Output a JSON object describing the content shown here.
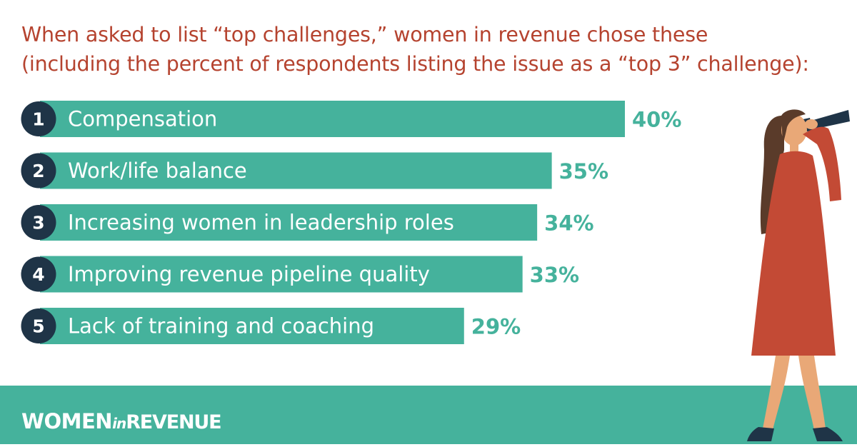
{
  "headline": {
    "line1": "When asked to list “top challenges,” women in revenue chose these",
    "line2": "(including the percent of respondents listing the issue as a “top 3” challenge):"
  },
  "chart_data": {
    "type": "bar",
    "orientation": "horizontal",
    "title": "",
    "xlabel": "",
    "ylabel": "",
    "xlim": [
      0,
      40
    ],
    "categories": [
      "Compensation",
      "Work/life balance",
      "Increasing women in leadership roles",
      "Improving revenue pipeline quality",
      "Lack of training and coaching"
    ],
    "ranks": [
      "1",
      "2",
      "3",
      "4",
      "5"
    ],
    "values": [
      40,
      35,
      34,
      33,
      29
    ],
    "value_labels": [
      "40%",
      "35%",
      "34%",
      "33%",
      "29%"
    ],
    "grid": false,
    "legend": "none"
  },
  "footer": {
    "brand_women": "WOMEN",
    "brand_in": "in",
    "brand_revenue": "REVENUE"
  },
  "colors": {
    "bar": "#45b29c",
    "rank_circle": "#1f3447",
    "headline": "#b5432f",
    "value_label": "#45b29c",
    "footer": "#45b29c"
  },
  "icons": [
    "woman-with-telescope-illustration"
  ]
}
